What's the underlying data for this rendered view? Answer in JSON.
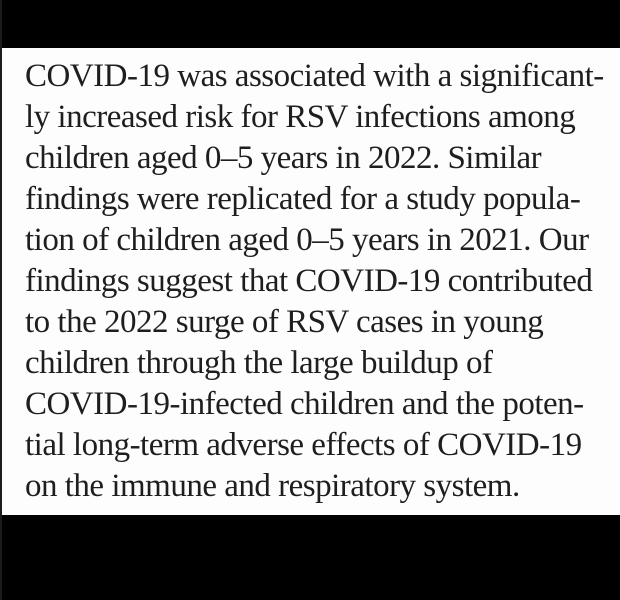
{
  "page": {
    "letterbox_color": "#000000",
    "content_background": "#fdfdfd",
    "text_color": "#1e1e1e"
  },
  "article": {
    "lines": [
      "COVID-19 was associated with a significant-",
      "ly increased risk for RSV infections among",
      "children aged 0–5 years in 2022. Similar",
      "findings were replicated for a study popula-",
      "tion of children aged 0–5 years in 2021. Our",
      "findings suggest that COVID-19 contributed",
      "to the 2022 surge of RSV cases in young",
      "children through the large buildup of",
      "COVID-19-infected children and the poten-",
      "tial long-term adverse effects of COVID-19",
      "on the immune and respiratory system."
    ],
    "full_text": "COVID-19 was associated with a significantly increased risk for RSV infections among children aged 0–5 years in 2022. Similar findings were replicated for a study population of children aged 0–5 years in 2021. Our findings suggest that COVID-19 contributed to the 2022 surge of RSV cases in young children through the large buildup of COVID-19-infected children and the potential long-term adverse effects of COVID-19 on the immune and respiratory system."
  }
}
